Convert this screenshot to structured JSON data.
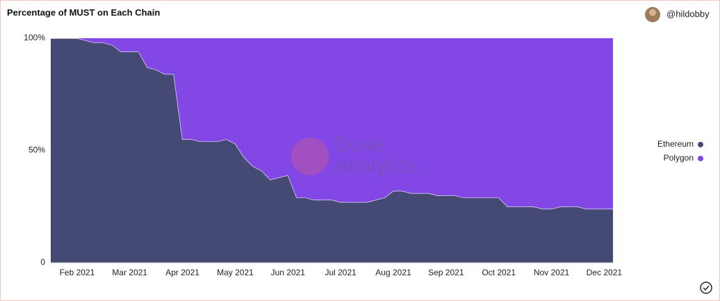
{
  "chart_data": {
    "type": "stacked_area",
    "title": "Percentage of MUST on Each Chain",
    "author": "@hildobby",
    "watermark": [
      "Dune",
      "Analytics"
    ],
    "categories": [
      null,
      null,
      null,
      "Feb 2021",
      null,
      null,
      null,
      null,
      null,
      "Mar 2021",
      null,
      null,
      null,
      null,
      null,
      "Apr 2021",
      null,
      null,
      null,
      null,
      null,
      "May 2021",
      null,
      null,
      null,
      null,
      null,
      "Jun 2021",
      null,
      null,
      null,
      null,
      null,
      "Jul 2021",
      null,
      null,
      null,
      null,
      null,
      "Aug 2021",
      null,
      null,
      null,
      null,
      null,
      "Sep 2021",
      null,
      null,
      null,
      null,
      null,
      "Oct 2021",
      null,
      null,
      null,
      null,
      null,
      "Nov 2021",
      null,
      null,
      null,
      null,
      null,
      "Dec 2021",
      null
    ],
    "series": [
      {
        "name": "Ethereum",
        "color": "#454a75",
        "values": [
          100,
          100,
          100,
          100,
          99,
          98,
          98,
          97,
          94,
          94,
          94,
          87,
          86,
          84,
          84,
          55,
          55,
          54,
          54,
          54,
          55,
          53,
          47,
          43,
          41,
          37,
          38,
          39,
          29,
          29,
          28,
          28,
          28,
          27,
          27,
          27,
          27,
          28,
          29,
          32,
          32,
          31,
          31,
          31,
          30,
          30,
          30,
          29,
          29,
          29,
          29,
          29,
          25,
          25,
          25,
          25,
          24,
          24,
          25,
          25,
          25,
          24,
          24,
          24,
          24
        ]
      },
      {
        "name": "Polygon",
        "color": "#8247e5",
        "values": [
          0,
          0,
          0,
          0,
          1,
          2,
          2,
          3,
          6,
          6,
          6,
          13,
          14,
          16,
          16,
          45,
          45,
          46,
          46,
          46,
          45,
          47,
          53,
          57,
          59,
          63,
          62,
          61,
          71,
          71,
          72,
          72,
          72,
          73,
          73,
          73,
          73,
          72,
          71,
          68,
          68,
          69,
          69,
          69,
          70,
          70,
          70,
          71,
          71,
          71,
          71,
          71,
          75,
          75,
          75,
          75,
          76,
          76,
          75,
          75,
          75,
          76,
          76,
          76,
          76
        ]
      }
    ],
    "ylim": [
      0,
      100
    ],
    "yticks": [
      {
        "value": 0,
        "label": "0"
      },
      {
        "value": 50,
        "label": "50%"
      },
      {
        "value": 100,
        "label": "100%"
      }
    ],
    "grid": false,
    "legend": "right"
  }
}
